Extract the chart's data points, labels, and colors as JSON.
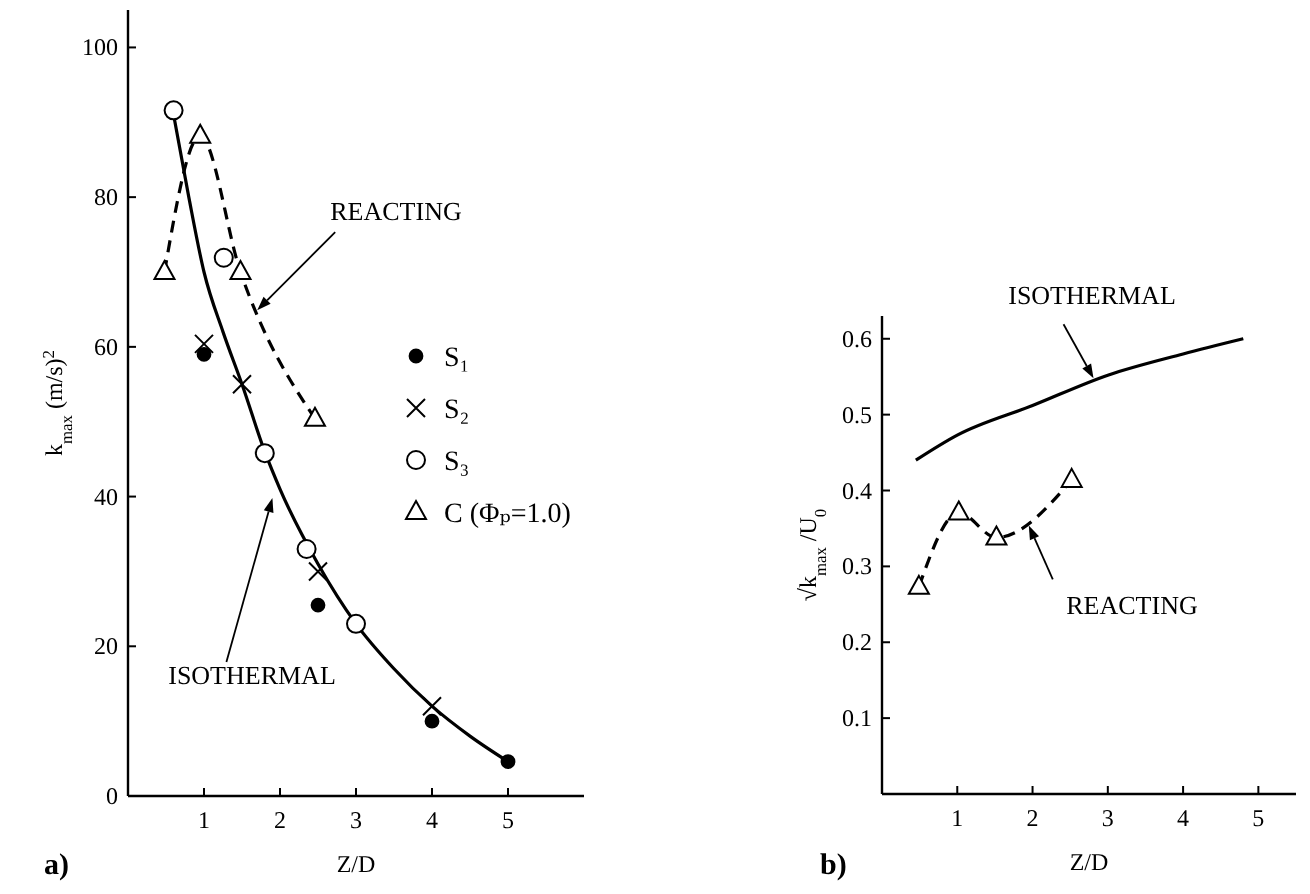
{
  "chart_data": [
    {
      "type": "scatter",
      "title": "a)",
      "xlabel": "Z/D",
      "ylabel": "k$_{max}$  (m/s)$^{2}$",
      "xlim": [
        0,
        6
      ],
      "ylim": [
        0,
        105
      ],
      "xticks": [
        1,
        2,
        3,
        4,
        5
      ],
      "yticks": [
        0,
        20,
        40,
        60,
        80,
        100
      ],
      "legend": "right",
      "grid": false,
      "series": [
        {
          "type": "line",
          "color": "#000000",
          "line_style": "solid",
          "marker": "none",
          "x": [
            0.6,
            0.8,
            1,
            1.25,
            1.5,
            1.8,
            2,
            2.5,
            3,
            3.5,
            4,
            4.5,
            5
          ],
          "values": [
            91,
            80,
            70,
            62,
            55,
            46,
            41,
            31,
            23,
            17,
            12,
            8,
            4.6
          ]
        },
        {
          "name": "S₁",
          "color": "#000000",
          "marker": "circle",
          "x": [
            1,
            2.5,
            4,
            5
          ],
          "values": [
            59,
            25.5,
            10,
            4.6
          ]
        },
        {
          "name": "S₂",
          "color": "#000000",
          "marker": "cross",
          "x": [
            1,
            1.5,
            2.5,
            4
          ],
          "values": [
            60.4,
            55,
            30,
            12
          ]
        },
        {
          "name": "S₃",
          "color": "#000000",
          "marker": "circle",
          "x": [
            0.6,
            1.26,
            1.8,
            2.35,
            3
          ],
          "values": [
            91.6,
            71.9,
            45.8,
            33,
            23
          ]
        },
        {
          "name": "C (Φₚ=1.0)",
          "type": "line",
          "line_style": "dashed",
          "color": "#000000",
          "marker": "triangle",
          "x": [
            0.48,
            0.95,
            1.48,
            2.46
          ],
          "values": [
            70,
            88.2,
            70,
            50.4
          ]
        }
      ],
      "annotations": [
        {
          "text": "REACTING",
          "x": 1.7,
          "y": 64.9
        },
        {
          "text": "ISOTHERMAL",
          "x": 1.9,
          "y": 39.8
        }
      ]
    },
    {
      "type": "line",
      "title": "b)",
      "xlabel": "Z/D",
      "ylabel": "√k$_{max}$ /U$_{0}$",
      "xlim": [
        0,
        5.5
      ],
      "ylim": [
        0,
        0.63
      ],
      "xticks": [
        1,
        2,
        3,
        4,
        5
      ],
      "yticks": [
        0.1,
        0.2,
        0.3,
        0.4,
        0.5,
        0.6
      ],
      "legend": false,
      "grid": false,
      "series": [
        {
          "color": "#000000",
          "line_style": "solid",
          "marker": "none",
          "x": [
            0.45,
            1,
            2,
            3,
            4,
            4.8
          ],
          "values": [
            0.44,
            0.473,
            0.512,
            0.552,
            0.58,
            0.6
          ]
        },
        {
          "color": "#000000",
          "line_style": "dashed",
          "marker": "triangle",
          "x": [
            0.49,
            1.02,
            1.52,
            2.52
          ],
          "values": [
            0.273,
            0.371,
            0.338,
            0.414
          ]
        }
      ],
      "annotations": [
        {
          "text": "ISOTHERMAL",
          "x": 2.81,
          "y": 0.548
        },
        {
          "text": "REACTING",
          "x": 1.95,
          "y": 0.354
        }
      ]
    }
  ]
}
